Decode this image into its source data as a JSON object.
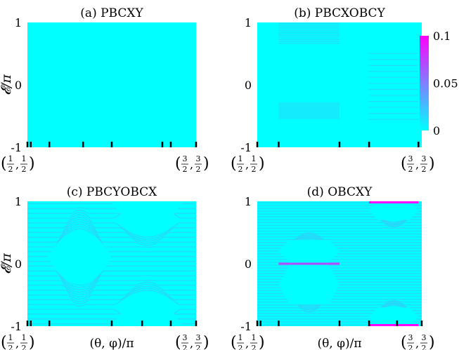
{
  "chart_data": [
    {
      "type": "heatmap",
      "panel": "a",
      "title": "(a) PBCXY",
      "ylabel": "𝓔/π",
      "xlabel": "",
      "ylim": [
        -1,
        1
      ],
      "yticks": [
        "-1",
        "0",
        "1"
      ],
      "xticks": [
        {
          "num": "1",
          "den": "2"
        },
        {
          "num": "3",
          "den": "2"
        }
      ],
      "xmarks": [
        0.0,
        0.02,
        0.13,
        0.33,
        0.5,
        0.8,
        0.85,
        1.0
      ],
      "hole_ranges": [],
      "band_ranges": [],
      "value_max_in_panel": 0.0
    },
    {
      "type": "heatmap",
      "panel": "b",
      "title": "(b) PBCXOBCY",
      "ylabel": "",
      "xlabel": "",
      "ylim": [
        -1,
        1
      ],
      "yticks": [
        "-1",
        "0",
        "1"
      ],
      "xticks": [
        {
          "num": "1",
          "den": "2"
        },
        {
          "num": "3",
          "den": "2"
        }
      ],
      "xmarks": [
        0.0,
        0.13,
        0.5,
        0.68,
        0.98
      ],
      "band_ranges": [
        {
          "x": [
            0.13,
            0.5
          ],
          "y": [
            0.65,
            1.0
          ]
        },
        {
          "x": [
            0.13,
            0.5
          ],
          "y": [
            -0.55,
            -0.28
          ]
        },
        {
          "x": [
            0.68,
            0.98
          ],
          "y": [
            -0.6,
            0.55
          ]
        }
      ],
      "hole_ranges": [],
      "value_max_in_panel": 0.02
    },
    {
      "type": "heatmap",
      "panel": "c",
      "title": "(c) PBCYOBCX",
      "ylabel": "𝓔/π",
      "xlabel": "(θ, φ)/π",
      "ylim": [
        -1,
        1
      ],
      "yticks": [
        "-1",
        "0",
        "1"
      ],
      "xticks": [
        {
          "num": "1",
          "den": "2"
        },
        {
          "num": "3",
          "den": "2"
        }
      ],
      "xmarks": [
        0.0,
        0.02,
        0.13,
        0.5,
        0.68,
        0.85,
        1.0
      ],
      "hole_ranges": [
        {
          "shape": "lens",
          "x": [
            0.12,
            0.5
          ],
          "y": [
            -0.55,
            0.75
          ]
        },
        {
          "shape": "arch-up",
          "x": [
            0.5,
            0.92
          ],
          "y": [
            0.4,
            1.0
          ]
        },
        {
          "shape": "arch-down",
          "x": [
            0.5,
            0.92
          ],
          "y": [
            -1.0,
            -0.4
          ]
        }
      ],
      "band_ranges": [],
      "value_max_in_panel": 0.02
    },
    {
      "type": "heatmap",
      "panel": "d",
      "title": "(d) OBCXY",
      "ylabel": "",
      "xlabel": "(θ, φ)/π",
      "ylim": [
        -1,
        1
      ],
      "yticks": [
        "-1",
        "0",
        "1"
      ],
      "xticks": [
        {
          "num": "1",
          "den": "2"
        },
        {
          "num": "3",
          "den": "2"
        }
      ],
      "xmarks": [
        0.0,
        0.02,
        0.13,
        0.5,
        0.68,
        0.85,
        1.0
      ],
      "hole_ranges": [
        {
          "shape": "hexagon",
          "x": [
            0.13,
            0.5
          ],
          "y": [
            0.02,
            0.38
          ]
        },
        {
          "shape": "hexagon",
          "x": [
            0.13,
            0.5
          ],
          "y": [
            -0.65,
            -0.02
          ]
        },
        {
          "shape": "hexagon",
          "x": [
            0.68,
            0.98
          ],
          "y": [
            0.7,
            1.0
          ]
        },
        {
          "shape": "hexagon",
          "x": [
            0.68,
            0.98
          ],
          "y": [
            -1.0,
            -0.7
          ]
        }
      ],
      "hot_lines": [
        {
          "x": [
            0.13,
            0.5
          ],
          "y": 0.0,
          "value": 0.07
        },
        {
          "x": [
            0.68,
            0.98
          ],
          "y": 1.0,
          "value": 0.1
        },
        {
          "x": [
            0.68,
            0.98
          ],
          "y": -1.0,
          "value": 0.1
        }
      ],
      "band_ranges": [],
      "value_max_in_panel": 0.1
    }
  ],
  "colorbar": {
    "range": [
      0,
      0.1
    ],
    "ticks": [
      "0",
      "0.05",
      "0.1"
    ],
    "color_low": "#00ffff",
    "color_high": "#ff00ff"
  },
  "colors": {
    "background": "#00ffff",
    "line": "#3fbff5"
  }
}
